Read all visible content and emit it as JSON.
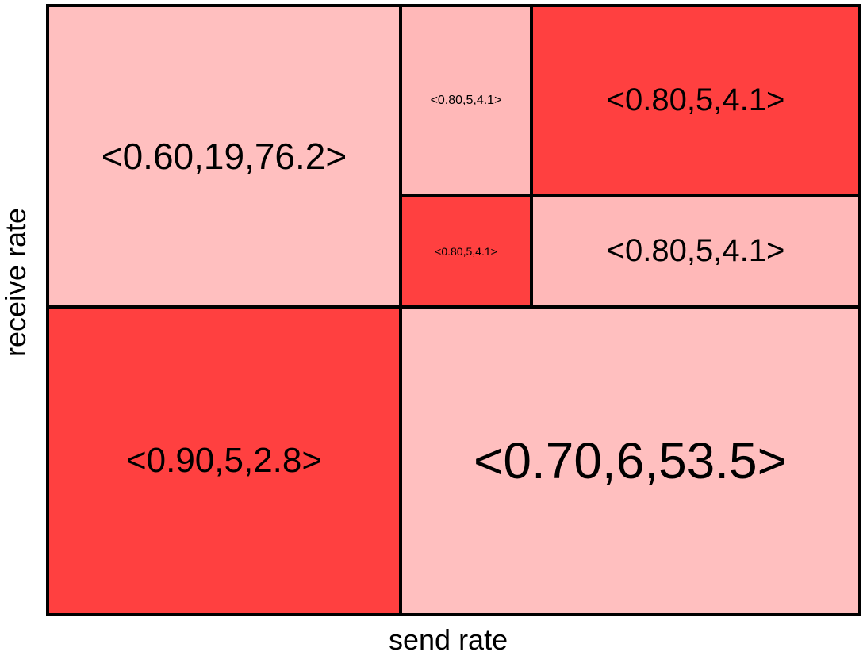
{
  "diagram": {
    "xlabel": "send rate",
    "ylabel": "receive rate",
    "colors": {
      "light": "#ffbfbf",
      "light_alt": "#ffb8b8",
      "dark": "#ff4040",
      "border": "#000000"
    },
    "cells": [
      {
        "id": "top-left",
        "label": "<0.60,19,76.2>",
        "shade": "light"
      },
      {
        "id": "top-mid-upper",
        "label": "<0.80,5,4.1>",
        "shade": "light_alt"
      },
      {
        "id": "top-right-upper",
        "label": "<0.80,5,4.1>",
        "shade": "dark"
      },
      {
        "id": "top-mid-lower",
        "label": "<0.80,5,4.1>",
        "shade": "dark"
      },
      {
        "id": "top-right-lower",
        "label": "<0.80,5,4.1>",
        "shade": "light_alt"
      },
      {
        "id": "bottom-left",
        "label": "<0.90,5,2.8>",
        "shade": "dark"
      },
      {
        "id": "bottom-right",
        "label": "<0.70,6,53.5>",
        "shade": "light"
      }
    ]
  }
}
